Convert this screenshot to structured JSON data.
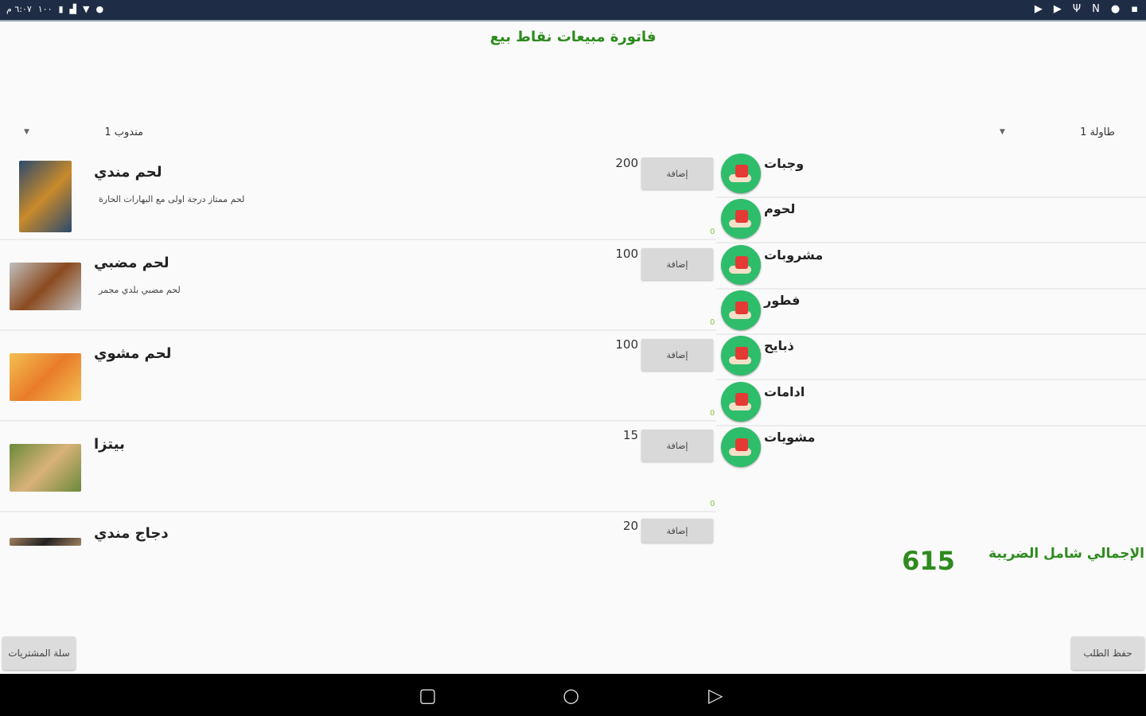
{
  "status_bar": {
    "time": "٦:٠٧ م",
    "battery": "١٠٠",
    "icons_left": [
      "battery-icon",
      "signal-icon",
      "wifi-icon",
      "circle-icon"
    ],
    "icons_right": [
      "play-store-icon",
      "play-store-icon",
      "usb-icon",
      "nfc-icon",
      "notification-icon",
      "sd-card-icon"
    ]
  },
  "title": "فاتورة مبيعات نقاط بيع",
  "spinners": {
    "delegate": "مندوب 1",
    "table": "طاولة 1"
  },
  "products": [
    {
      "name": "لحم مندي",
      "desc": "لحم ممتاز درجة اولى مع البهارات الحارة",
      "price": "200",
      "add": "إضافة",
      "qty": "0",
      "color1": "#c98a2a",
      "color2": "#2b4a6e"
    },
    {
      "name": "لحم مضبي",
      "desc": "لحم مضبي بلدي مجمر",
      "price": "100",
      "add": "إضافة",
      "qty": "0",
      "color1": "#8a4a1e",
      "color2": "#c0c0c0"
    },
    {
      "name": "لحم مشوي",
      "desc": "",
      "price": "100",
      "add": "إضافة",
      "qty": "0",
      "color1": "#e97b2a",
      "color2": "#f3c050"
    },
    {
      "name": "بيتزا",
      "desc": "",
      "price": "15",
      "add": "إضافة",
      "qty": "0",
      "color1": "#d9b27a",
      "color2": "#6a8a3a"
    },
    {
      "name": "دجاج مندي",
      "desc": "",
      "price": "20",
      "add": "إضافة",
      "qty": "",
      "color1": "#222",
      "color2": "#a08060"
    }
  ],
  "categories": [
    "وجبات",
    "لحوم",
    "مشروبات",
    "فطور",
    "ذبايح",
    "ادامات",
    "مشويات"
  ],
  "total": {
    "label": "الإجمالي شامل الضريبة",
    "value": "615"
  },
  "buttons": {
    "cart": "سلة المشتريات",
    "save": "حفظ الطلب"
  },
  "colors": {
    "accent": "#2e8b1e",
    "category_icon": "#2ebd6b",
    "status_bar": "#1e2d45"
  }
}
